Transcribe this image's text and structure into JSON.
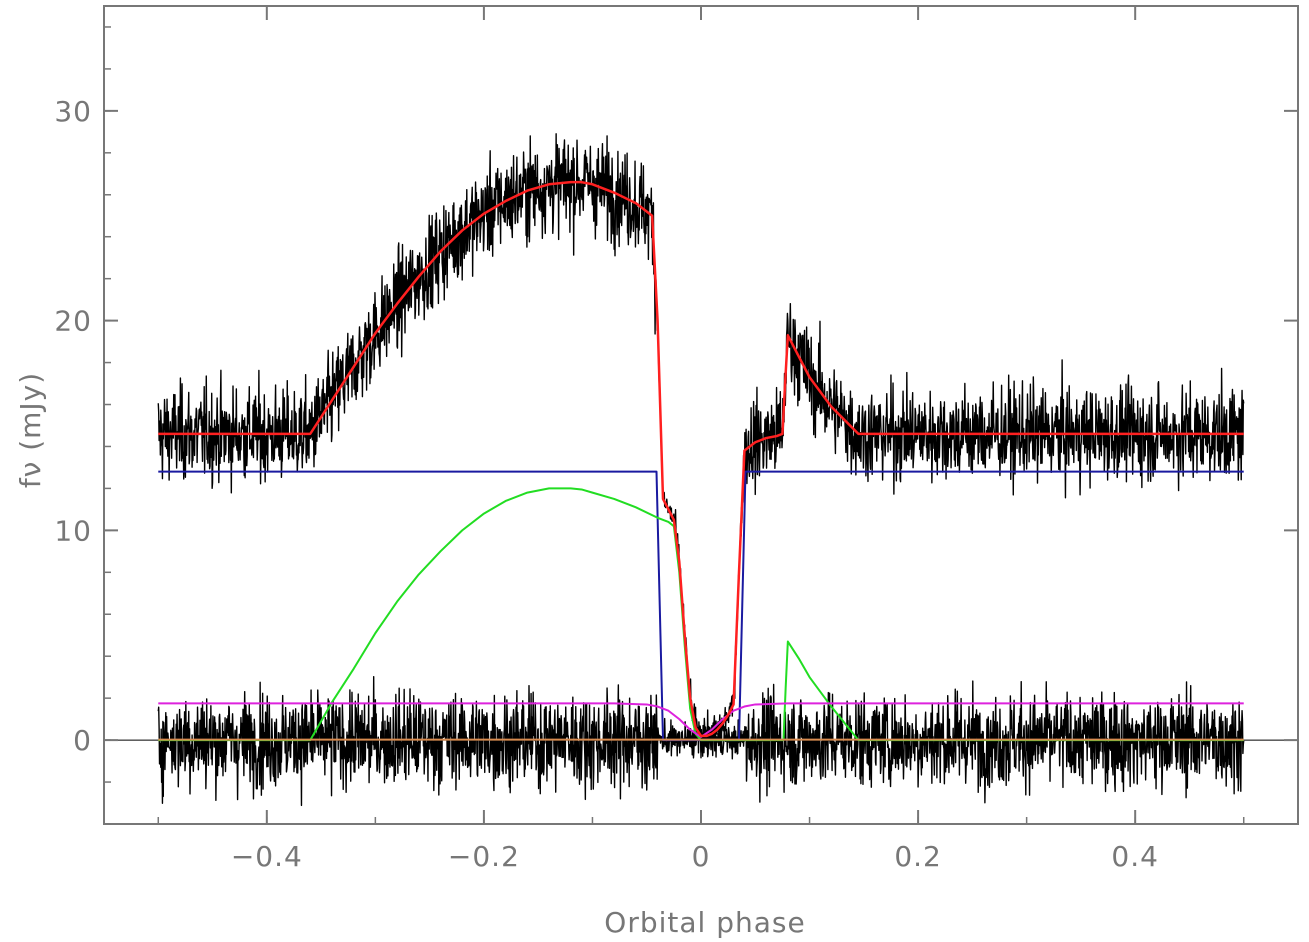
{
  "chart_data": {
    "type": "line",
    "title": "",
    "xlabel": "Orbital phase",
    "ylabel": "fν (mJy)",
    "xlim": [
      -0.55,
      0.55
    ],
    "ylim": [
      -4,
      35
    ],
    "xticks": [
      {
        "value": -0.4,
        "label": "−0.4"
      },
      {
        "value": -0.2,
        "label": "−0.2"
      },
      {
        "value": 0,
        "label": "0"
      },
      {
        "value": 0.2,
        "label": "0.2"
      },
      {
        "value": 0.4,
        "label": "0.4"
      }
    ],
    "yticks": [
      {
        "value": 0,
        "label": "0"
      },
      {
        "value": 10,
        "label": "10"
      },
      {
        "value": 20,
        "label": "20"
      },
      {
        "value": 30,
        "label": "30"
      }
    ],
    "grid": false,
    "legend": "none",
    "reference_line_y": 0,
    "series": [
      {
        "role": "observed-light-curve",
        "color": "#000000",
        "noise_sigma": 1.1,
        "x": [
          -0.5,
          -0.36,
          -0.34,
          -0.32,
          -0.3,
          -0.28,
          -0.26,
          -0.24,
          -0.22,
          -0.2,
          -0.18,
          -0.16,
          -0.14,
          -0.12,
          -0.11,
          -0.1,
          -0.08,
          -0.06,
          -0.045,
          -0.04,
          -0.035,
          -0.03,
          -0.025,
          -0.02,
          -0.015,
          -0.01,
          -0.005,
          0,
          0.005,
          0.01,
          0.015,
          0.02,
          0.025,
          0.03,
          0.035,
          0.04,
          0.05,
          0.06,
          0.07,
          0.075,
          0.078,
          0.08,
          0.09,
          0.1,
          0.12,
          0.145,
          0.2,
          0.3,
          0.4,
          0.5
        ],
        "y": [
          14.6,
          14.6,
          16.2,
          17.8,
          19.4,
          20.8,
          22.1,
          23.3,
          24.3,
          25.1,
          25.7,
          26.2,
          26.5,
          26.6,
          26.6,
          26.5,
          26.1,
          25.6,
          25.0,
          20.0,
          11.5,
          11.0,
          10.5,
          8.5,
          5.0,
          2.0,
          0.6,
          0.2,
          0.2,
          0.3,
          0.5,
          0.8,
          1.2,
          1.7,
          8.0,
          13.8,
          14.2,
          14.4,
          14.5,
          14.6,
          17.5,
          19.3,
          18.3,
          17.3,
          15.9,
          14.6,
          14.6,
          14.6,
          14.6,
          14.6
        ]
      },
      {
        "role": "total-model",
        "color": "#ff2020",
        "x": [
          -0.5,
          -0.36,
          -0.34,
          -0.32,
          -0.3,
          -0.28,
          -0.26,
          -0.24,
          -0.22,
          -0.2,
          -0.18,
          -0.16,
          -0.14,
          -0.12,
          -0.11,
          -0.1,
          -0.08,
          -0.06,
          -0.045,
          -0.04,
          -0.035,
          -0.03,
          -0.025,
          -0.02,
          -0.015,
          -0.01,
          -0.005,
          0,
          0.005,
          0.01,
          0.015,
          0.02,
          0.025,
          0.03,
          0.035,
          0.04,
          0.05,
          0.06,
          0.07,
          0.075,
          0.078,
          0.08,
          0.09,
          0.1,
          0.12,
          0.145,
          0.2,
          0.3,
          0.4,
          0.5
        ],
        "y": [
          14.6,
          14.6,
          16.2,
          17.8,
          19.4,
          20.8,
          22.1,
          23.3,
          24.3,
          25.1,
          25.7,
          26.2,
          26.5,
          26.6,
          26.6,
          26.5,
          26.1,
          25.6,
          25.0,
          20.0,
          11.5,
          11.0,
          10.5,
          8.5,
          5.0,
          2.0,
          0.6,
          0.2,
          0.2,
          0.3,
          0.5,
          0.8,
          1.2,
          1.7,
          8.0,
          13.8,
          14.2,
          14.4,
          14.5,
          14.6,
          17.5,
          19.3,
          18.3,
          17.3,
          15.9,
          14.6,
          14.6,
          14.6,
          14.6,
          14.6
        ]
      },
      {
        "role": "white-dwarf-component",
        "color": "#1a1aa0",
        "x": [
          -0.5,
          -0.041,
          -0.038,
          -0.035,
          0.035,
          0.038,
          0.041,
          0.5
        ],
        "y": [
          12.8,
          12.8,
          6.4,
          0,
          0,
          6.4,
          12.8,
          12.8
        ]
      },
      {
        "role": "bright-spot-component",
        "color": "#22dd22",
        "x": [
          -0.5,
          -0.36,
          -0.34,
          -0.32,
          -0.3,
          -0.28,
          -0.26,
          -0.24,
          -0.22,
          -0.2,
          -0.18,
          -0.16,
          -0.14,
          -0.12,
          -0.11,
          -0.1,
          -0.08,
          -0.06,
          -0.04,
          -0.03,
          -0.025,
          -0.02,
          -0.015,
          -0.01,
          -0.005,
          0,
          0.076,
          0.078,
          0.08,
          0.09,
          0.1,
          0.12,
          0.145,
          0.5
        ],
        "y": [
          0,
          0,
          1.8,
          3.4,
          5.1,
          6.6,
          7.9,
          9.0,
          10.0,
          10.8,
          11.4,
          11.8,
          12.0,
          12.0,
          11.95,
          11.8,
          11.5,
          11.1,
          10.6,
          10.4,
          10.2,
          8.0,
          4.5,
          1.5,
          0.3,
          0,
          0,
          2.5,
          4.7,
          3.9,
          3.0,
          1.6,
          0,
          0
        ]
      },
      {
        "role": "disc-component",
        "color": "#dd22dd",
        "x": [
          -0.5,
          -0.08,
          -0.05,
          -0.04,
          -0.03,
          -0.02,
          -0.01,
          0,
          0.01,
          0.02,
          0.03,
          0.04,
          0.05,
          0.08,
          0.5
        ],
        "y": [
          1.75,
          1.75,
          1.7,
          1.6,
          1.4,
          1.0,
          0.5,
          0.15,
          0.5,
          1.0,
          1.4,
          1.6,
          1.7,
          1.75,
          1.75
        ]
      },
      {
        "role": "secondary-star-component",
        "color": "#d98c50",
        "x": [
          -0.5,
          0.5
        ],
        "y": [
          0.02,
          0.02
        ]
      },
      {
        "role": "residuals",
        "color": "#000000",
        "noise_sigma": 1.1,
        "x": [
          -0.5,
          0.5
        ],
        "y": [
          0,
          0
        ]
      }
    ]
  }
}
